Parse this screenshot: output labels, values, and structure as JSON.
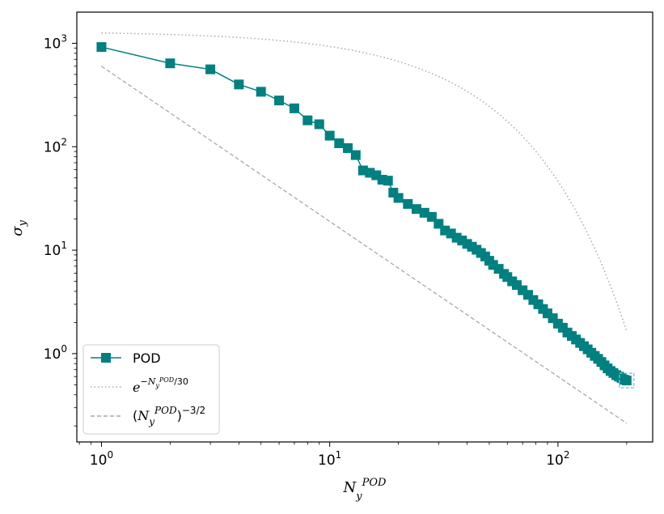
{
  "chart_data": {
    "type": "line",
    "xscale": "log",
    "yscale": "log",
    "xlim": [
      0.78,
      260
    ],
    "ylim": [
      0.14,
      2000
    ],
    "xlabel": "N_y^POD",
    "ylabel": "σ_y",
    "x_ticks": [
      {
        "value": 1,
        "base": "10",
        "exp": "0"
      },
      {
        "value": 10,
        "base": "10",
        "exp": "1"
      },
      {
        "value": 100,
        "base": "10",
        "exp": "2"
      }
    ],
    "y_ticks": [
      {
        "value": 1,
        "base": "10",
        "exp": "0"
      },
      {
        "value": 10,
        "base": "10",
        "exp": "1"
      },
      {
        "value": 100,
        "base": "10",
        "exp": "2"
      },
      {
        "value": 1000,
        "base": "10",
        "exp": "3"
      }
    ],
    "legend_position": "lower-left",
    "series": [
      {
        "name": "POD",
        "style": "solid-square-markers",
        "color": "#008080",
        "x": [
          1,
          2,
          3,
          4,
          5,
          6,
          7,
          8,
          9,
          10,
          11,
          12,
          13,
          14,
          15,
          16,
          17,
          18,
          19,
          20,
          22,
          24,
          26,
          28,
          30,
          32,
          34,
          36,
          38,
          40,
          42,
          44,
          46,
          48,
          50,
          52,
          55,
          58,
          60,
          63,
          66,
          70,
          74,
          78,
          82,
          86,
          90,
          95,
          100,
          105,
          110,
          115,
          120,
          125,
          130,
          135,
          140,
          145,
          150,
          155,
          160,
          165,
          170,
          175,
          180,
          185,
          190,
          195,
          200
        ],
        "y": [
          920,
          640,
          560,
          400,
          340,
          280,
          235,
          180,
          165,
          128,
          108,
          97,
          83,
          59,
          56,
          53,
          48,
          47,
          36,
          32,
          28,
          25,
          23,
          21,
          18,
          15.5,
          14.5,
          13.2,
          12.4,
          11.5,
          10.8,
          10.1,
          9.4,
          8.7,
          7.9,
          7.2,
          6.6,
          5.9,
          5.5,
          5.0,
          4.6,
          4.1,
          3.7,
          3.3,
          3.0,
          2.7,
          2.45,
          2.2,
          1.95,
          1.78,
          1.6,
          1.48,
          1.37,
          1.27,
          1.18,
          1.1,
          1.02,
          0.95,
          0.89,
          0.83,
          0.77,
          0.72,
          0.68,
          0.65,
          0.62,
          0.6,
          0.58,
          0.56,
          0.55
        ]
      },
      {
        "name": "e^{-N_y^POD/30}",
        "style": "dotted",
        "color": "#a9a9a9",
        "scale": 1300,
        "rate_divisor": 30
      },
      {
        "name": "(N_y^POD)^{-3/2}",
        "style": "dashed",
        "color": "#a9a9a9",
        "scale": 600,
        "exponent": -1.5
      }
    ],
    "highlight_box": {
      "x": 200,
      "y": 0.55,
      "color": "#7ec3c8"
    }
  }
}
